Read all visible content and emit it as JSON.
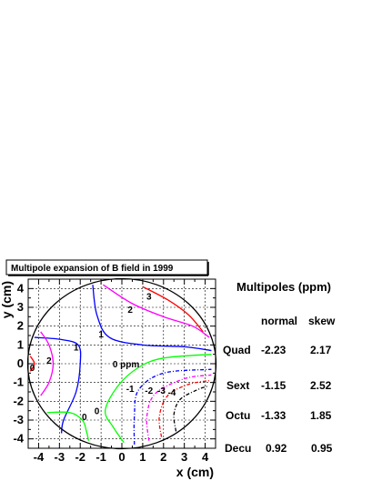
{
  "chart_data": {
    "type": "contour",
    "title": "Multipole expansion of B field in 1999",
    "xlabel": "x (cm)",
    "ylabel": "y (cm)",
    "xlim": [
      -4.5,
      4.5
    ],
    "ylim": [
      -4.5,
      4.5
    ],
    "x_ticks": [
      "-4",
      "-3",
      "-2",
      "-1",
      "0",
      "1",
      "2",
      "3",
      "4"
    ],
    "y_ticks": [
      "-4",
      "-3",
      "-2",
      "-1",
      "0",
      "1",
      "2",
      "3",
      "4"
    ],
    "grid": true,
    "contour_labels": [
      {
        "text": "3",
        "x": 1.3,
        "y": 3.6
      },
      {
        "text": "2",
        "x": 0.4,
        "y": 2.9
      },
      {
        "text": "1",
        "x": -1.0,
        "y": 1.6
      },
      {
        "text": "1",
        "x": -2.2,
        "y": 0.9
      },
      {
        "text": "2",
        "x": -3.5,
        "y": 0.2
      },
      {
        "text": "0",
        "x": -4.3,
        "y": -0.2
      },
      {
        "text": "0 ppm",
        "x": 0.2,
        "y": 0.0
      },
      {
        "text": "-1",
        "x": 0.4,
        "y": -1.3
      },
      {
        "text": "-2",
        "x": 1.3,
        "y": -1.4
      },
      {
        "text": "-3",
        "x": 1.9,
        "y": -1.4
      },
      {
        "text": "-4",
        "x": 2.4,
        "y": -1.5
      },
      {
        "text": "0",
        "x": -1.2,
        "y": -2.5
      },
      {
        "text": "0",
        "x": -1.8,
        "y": -2.8
      }
    ],
    "contours": [
      {
        "level": 3,
        "color": "#ff0000",
        "style": "solid",
        "points": [
          [
            1.0,
            4.1
          ],
          [
            2.2,
            3.4
          ],
          [
            3.2,
            2.6
          ],
          [
            3.9,
            1.7
          ]
        ]
      },
      {
        "level": 2,
        "color": "#ff00ff",
        "style": "solid",
        "points": [
          [
            -0.9,
            4.2
          ],
          [
            0.5,
            3.2
          ],
          [
            2.0,
            2.5
          ],
          [
            3.4,
            2.0
          ],
          [
            4.2,
            1.4
          ]
        ]
      },
      {
        "level": 1,
        "color": "#0000ff",
        "style": "solid",
        "points": [
          [
            -1.4,
            4.2
          ],
          [
            -1.2,
            2.6
          ],
          [
            -0.6,
            1.4
          ],
          [
            1.0,
            1.0
          ],
          [
            3.0,
            0.9
          ],
          [
            4.3,
            0.7
          ]
        ]
      },
      {
        "level": 1,
        "color": "#0000ff",
        "style": "solid",
        "points": [
          [
            -4.2,
            1.4
          ],
          [
            -3.0,
            1.3
          ],
          [
            -2.1,
            1.0
          ],
          [
            -2.0,
            0.0
          ],
          [
            -2.2,
            -1.5
          ],
          [
            -2.8,
            -3.0
          ],
          [
            -2.9,
            -3.7
          ]
        ]
      },
      {
        "level": 2,
        "color": "#ff00ff",
        "style": "solid",
        "points": [
          [
            -3.9,
            1.7
          ],
          [
            -3.5,
            1.0
          ],
          [
            -3.3,
            0.0
          ],
          [
            -3.5,
            -1.0
          ],
          [
            -3.9,
            -1.7
          ]
        ]
      },
      {
        "level": 0,
        "color": "#ff0000",
        "style": "solid",
        "points": [
          [
            -4.4,
            0.4
          ],
          [
            -4.2,
            0.0
          ],
          [
            -4.4,
            -0.4
          ]
        ]
      },
      {
        "level": 0,
        "color": "#00ff00",
        "style": "solid",
        "points": [
          [
            4.3,
            0.5
          ],
          [
            2.0,
            0.3
          ],
          [
            0.8,
            -0.2
          ],
          [
            -0.2,
            -1.2
          ],
          [
            -0.8,
            -2.5
          ],
          [
            -0.4,
            -3.4
          ],
          [
            0.1,
            -4.2
          ]
        ]
      },
      {
        "level": 0,
        "color": "#00ff00",
        "style": "solid",
        "points": [
          [
            -3.6,
            -2.6
          ],
          [
            -2.5,
            -2.6
          ],
          [
            -1.9,
            -3.0
          ],
          [
            -1.7,
            -3.6
          ],
          [
            -1.6,
            -4.1
          ]
        ]
      },
      {
        "level": -1,
        "color": "#0000ff",
        "style": "dashed",
        "points": [
          [
            0.6,
            -4.3
          ],
          [
            0.6,
            -2.8
          ],
          [
            0.8,
            -1.4
          ],
          [
            2.0,
            -0.5
          ],
          [
            4.3,
            -0.3
          ]
        ]
      },
      {
        "level": -2,
        "color": "#ff00ff",
        "style": "dashed",
        "points": [
          [
            1.3,
            -4.1
          ],
          [
            1.2,
            -2.8
          ],
          [
            1.6,
            -1.6
          ],
          [
            3.0,
            -0.8
          ],
          [
            4.3,
            -0.6
          ]
        ]
      },
      {
        "level": -3,
        "color": "#ff0000",
        "style": "dashed",
        "points": [
          [
            1.9,
            -3.9
          ],
          [
            1.8,
            -2.8
          ],
          [
            2.2,
            -1.7
          ],
          [
            3.2,
            -1.1
          ],
          [
            4.2,
            -0.9
          ]
        ]
      },
      {
        "level": -4,
        "color": "#000000",
        "style": "dashed",
        "points": [
          [
            2.6,
            -3.6
          ],
          [
            2.5,
            -2.7
          ],
          [
            2.8,
            -1.9
          ],
          [
            3.6,
            -1.4
          ],
          [
            4.1,
            -1.2
          ]
        ]
      }
    ]
  },
  "multipoles": {
    "title": "Multipoles (ppm)",
    "col_normal": "normal",
    "col_skew": "skew",
    "rows": [
      {
        "name": "Quad",
        "normal": "-2.23",
        "skew": "2.17"
      },
      {
        "name": "Sext",
        "normal": "-1.15",
        "skew": "2.52"
      },
      {
        "name": "Octu",
        "normal": "-1.33",
        "skew": "1.85"
      },
      {
        "name": "Decu",
        "normal": "0.92",
        "skew": "0.95"
      }
    ]
  }
}
